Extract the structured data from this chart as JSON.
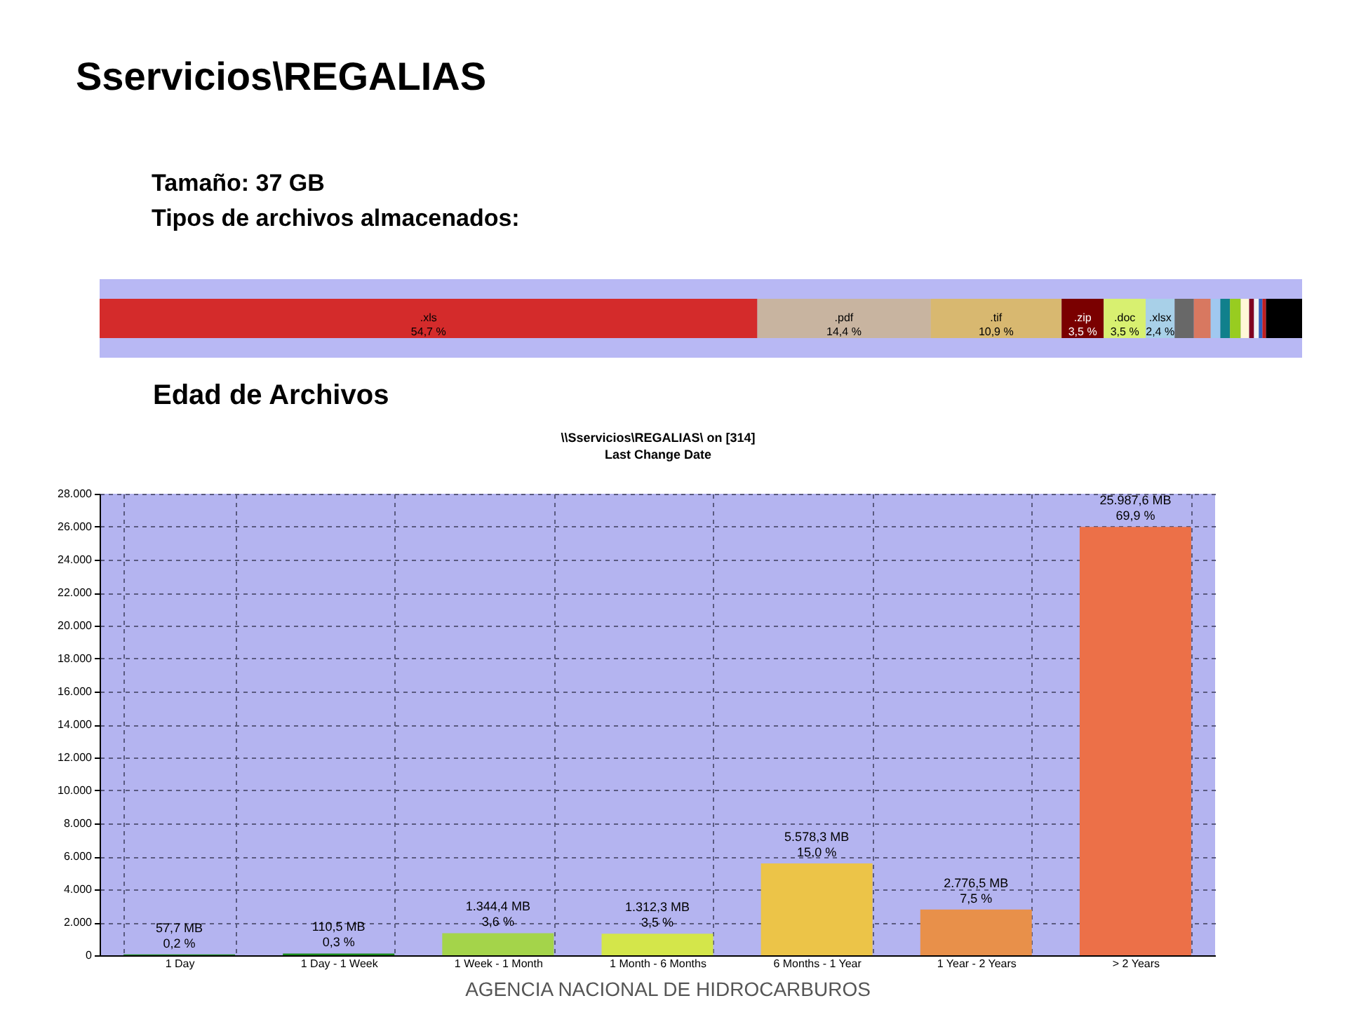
{
  "chart_data": [
    {
      "type": "bar",
      "orientation": "horizontal",
      "stacked": true,
      "title": "Sservicios\\REGALIAS",
      "subtitle": "Tipos de archivos almacenados:",
      "annotations": [
        "Tamaño: 37 GB"
      ],
      "categories": [
        null
      ],
      "xlim": [
        0,
        100
      ],
      "tick_labels": false,
      "series": [
        {
          "name": ".xls",
          "color": "#d42b2b",
          "values": [
            54.7
          ],
          "value_labels": [
            "54,7 %"
          ]
        },
        {
          "name": ".pdf",
          "color": "#c8b4a0",
          "values": [
            14.4
          ],
          "value_labels": [
            "14,4 %"
          ]
        },
        {
          "name": ".tif",
          "color": "#d8b870",
          "values": [
            10.9
          ],
          "value_labels": [
            "10,9 %"
          ]
        },
        {
          "name": ".zip",
          "color": "#7a0000",
          "values": [
            3.5
          ],
          "value_labels": [
            "3,5 %"
          ]
        },
        {
          "name": ".doc",
          "color": "#d8f070",
          "values": [
            3.5
          ],
          "value_labels": [
            "3,5 %"
          ]
        },
        {
          "name": ".xlsx",
          "color": "#a8d0e8",
          "values": [
            2.4
          ],
          "value_labels": [
            "2,4 %"
          ]
        },
        {
          "color": "#686868",
          "values": [
            1.6
          ]
        },
        {
          "color": "#d87860",
          "values": [
            1.4
          ]
        },
        {
          "color": "#a0c8f0",
          "values": [
            0.8
          ]
        },
        {
          "color": "#10808c",
          "values": [
            0.8
          ]
        },
        {
          "color": "#98cc20",
          "values": [
            0.9
          ]
        },
        {
          "color": "#fff8d8",
          "values": [
            0.7
          ]
        },
        {
          "color": "#800020",
          "values": [
            0.4
          ]
        },
        {
          "color": "#f0f0f0",
          "values": [
            0.4
          ]
        },
        {
          "color": "#3060c0",
          "values": [
            0.3
          ]
        },
        {
          "color": "#c02020",
          "values": [
            0.3
          ]
        },
        {
          "color": "#000000",
          "values": [
            3.0
          ]
        }
      ]
    },
    {
      "type": "bar",
      "title": "Edad de Archivos",
      "subtitle": "\\\\Sservicios\\REGALIAS\\ on [314]",
      "annotations": [
        "Last Change Date",
        "AGENCIA NACIONAL DE HIDROCARBUROS"
      ],
      "categories": [
        "1 Day",
        "1 Day - 1 Week",
        "1 Week - 1 Month",
        "1 Month - 6 Months",
        "6 Months - 1 Year",
        "1 Year - 2 Years",
        "> 2 Years"
      ],
      "values": [
        57.7,
        110.5,
        1344.4,
        1312.3,
        5578.3,
        2776.5,
        25987.6
      ],
      "colors": [
        "#1a8c1a",
        "#1a8c1a",
        "#a4d44a",
        "#d4e64a",
        "#ecc448",
        "#e8904a",
        "#ec7048"
      ],
      "value_labels": [
        "57,7 MB\n0,2 %",
        "110,5 MB\n0,3 %",
        "1.344,4 MB\n3,6 %",
        "1.312,3 MB\n3,5 %",
        "5.578,3 MB\n15,0 %",
        "2.776,5 MB\n7,5 %",
        "25.987,6 MB\n69,9 %"
      ],
      "ylim": [
        0,
        28000
      ],
      "yticks": [
        0,
        {
          "value": 2000,
          "label": "2.000"
        },
        {
          "value": 4000,
          "label": "4.000"
        },
        {
          "value": 6000,
          "label": "6.000"
        },
        {
          "value": 8000,
          "label": "8.000"
        },
        {
          "value": 10000,
          "label": "10.000"
        },
        {
          "value": 12000,
          "label": "12.000"
        },
        {
          "value": 14000,
          "label": "14.000"
        },
        {
          "value": 16000,
          "label": "16.000"
        },
        {
          "value": 18000,
          "label": "18.000"
        },
        {
          "value": 20000,
          "label": "20.000"
        },
        {
          "value": 22000,
          "label": "22.000"
        },
        {
          "value": 24000,
          "label": "24.000"
        },
        {
          "value": 26000,
          "label": "26.000"
        },
        {
          "value": 28000,
          "label": "28.000"
        }
      ],
      "grid": true
    }
  ]
}
